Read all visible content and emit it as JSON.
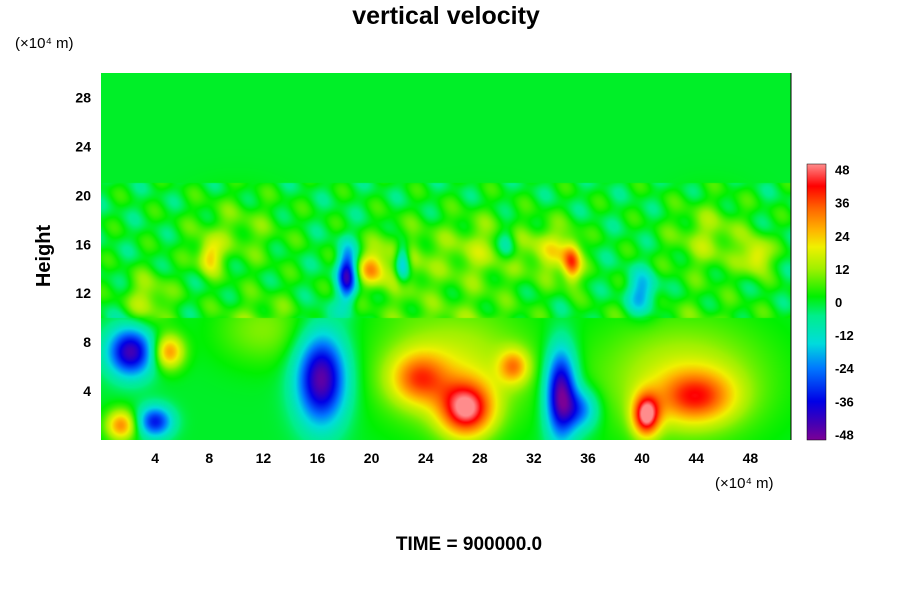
{
  "chart_data": {
    "type": "heatmap",
    "title": "vertical velocity",
    "ylabel": "Height",
    "y_unit": "(×10⁴ m)",
    "x_unit": "(×10⁴ m)",
    "footer": "TIME = 900000.0",
    "xlim": [
      0,
      51
    ],
    "ylim": [
      0,
      30
    ],
    "xticks": [
      "4",
      "8",
      "12",
      "16",
      "20",
      "24",
      "28",
      "32",
      "36",
      "40",
      "44",
      "48"
    ],
    "yticks": [
      "4",
      "8",
      "12",
      "16",
      "20",
      "24",
      "28"
    ],
    "colorbar": {
      "range": [
        -50,
        50
      ],
      "ticks": [
        "48",
        "36",
        "24",
        "12",
        "0",
        "-12",
        "-24",
        "-36",
        "-48"
      ]
    },
    "background_value": 0,
    "features": [
      {
        "x": 1.5,
        "y": 1.2,
        "value": 30,
        "sx": 0.8,
        "sy": 0.9
      },
      {
        "x": 4.0,
        "y": 1.5,
        "value": -34,
        "sx": 0.9,
        "sy": 0.9
      },
      {
        "x": 2.2,
        "y": 7.2,
        "value": -44,
        "sx": 1.2,
        "sy": 1.4
      },
      {
        "x": 5.0,
        "y": 7.2,
        "value": 30,
        "sx": 0.8,
        "sy": 1.0
      },
      {
        "x": 3.5,
        "y": 11.5,
        "value": 14,
        "sx": 1.2,
        "sy": 1.5
      },
      {
        "x": 16.3,
        "y": 5.0,
        "value": -48,
        "sx": 1.3,
        "sy": 2.6
      },
      {
        "x": 18.2,
        "y": 13.5,
        "value": -40,
        "sx": 0.5,
        "sy": 1.5
      },
      {
        "x": 20.0,
        "y": 14.0,
        "value": 22,
        "sx": 0.7,
        "sy": 1.0
      },
      {
        "x": 22.3,
        "y": 14.5,
        "value": -32,
        "sx": 0.4,
        "sy": 1.2
      },
      {
        "x": 22.0,
        "y": 14.5,
        "value": 14,
        "sx": 1.5,
        "sy": 2.0
      },
      {
        "x": 26.0,
        "y": 6.0,
        "value": 16,
        "sx": 4.0,
        "sy": 3.5
      },
      {
        "x": 23.5,
        "y": 5.0,
        "value": 26,
        "sx": 1.5,
        "sy": 1.5
      },
      {
        "x": 27.0,
        "y": 2.5,
        "value": 44,
        "sx": 1.4,
        "sy": 1.6
      },
      {
        "x": 30.5,
        "y": 6.0,
        "value": 24,
        "sx": 0.8,
        "sy": 1.0
      },
      {
        "x": 8.0,
        "y": 15.0,
        "value": 22,
        "sx": 0.6,
        "sy": 1.0
      },
      {
        "x": 34.0,
        "y": 3.8,
        "value": -50,
        "sx": 0.8,
        "sy": 2.6
      },
      {
        "x": 35.5,
        "y": 2.5,
        "value": -24,
        "sx": 0.9,
        "sy": 1.2
      },
      {
        "x": 34.8,
        "y": 14.5,
        "value": 34,
        "sx": 0.5,
        "sy": 1.2
      },
      {
        "x": 33.2,
        "y": 15.5,
        "value": 16,
        "sx": 1.2,
        "sy": 1.5
      },
      {
        "x": 43.0,
        "y": 5.0,
        "value": 16,
        "sx": 4.5,
        "sy": 3.5
      },
      {
        "x": 44.0,
        "y": 3.5,
        "value": 28,
        "sx": 2.0,
        "sy": 1.5
      },
      {
        "x": 40.3,
        "y": 2.0,
        "value": 44,
        "sx": 0.7,
        "sy": 1.2
      },
      {
        "x": 40.0,
        "y": 12.0,
        "value": -22,
        "sx": 0.8,
        "sy": 1.2
      },
      {
        "x": 28.0,
        "y": 15.5,
        "value": 12,
        "sx": 2.5,
        "sy": 2.0
      },
      {
        "x": 48.5,
        "y": 15.0,
        "value": 22,
        "sx": 0.7,
        "sy": 1.0
      },
      {
        "x": 45.0,
        "y": 16.5,
        "value": 12,
        "sx": 2.0,
        "sy": 2.0
      },
      {
        "x": 30.0,
        "y": 16.0,
        "value": -14,
        "sx": 0.5,
        "sy": 1.0
      },
      {
        "x": 12.0,
        "y": 9.0,
        "value": 10,
        "sx": 2.5,
        "sy": 2.0
      },
      {
        "x": 10.0,
        "y": 17.0,
        "value": 8,
        "sx": 2.5,
        "sy": 2.0
      }
    ]
  }
}
